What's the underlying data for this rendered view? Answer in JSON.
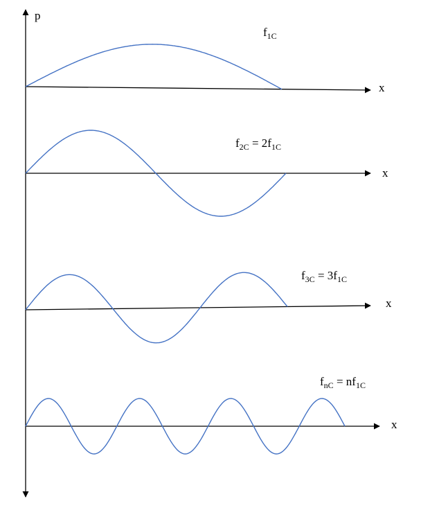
{
  "vertical_axis_label": "p",
  "modes": [
    {
      "x_label": "x",
      "label": [
        {
          "text": "f"
        },
        {
          "text": "1C",
          "sub": true
        }
      ]
    },
    {
      "x_label": "x",
      "label": [
        {
          "text": "f"
        },
        {
          "text": "2C",
          "sub": true
        },
        {
          "text": " = 2f"
        },
        {
          "text": "1C",
          "sub": true
        }
      ]
    },
    {
      "x_label": "x",
      "label": [
        {
          "text": "f"
        },
        {
          "text": "3C",
          "sub": true
        },
        {
          "text": " = 3f"
        },
        {
          "text": "1C",
          "sub": true
        }
      ]
    },
    {
      "x_label": "x",
      "label": [
        {
          "text": "f"
        },
        {
          "text": "nC",
          "sub": true
        },
        {
          "text": " = nf"
        },
        {
          "text": "1C",
          "sub": true
        }
      ]
    }
  ]
}
